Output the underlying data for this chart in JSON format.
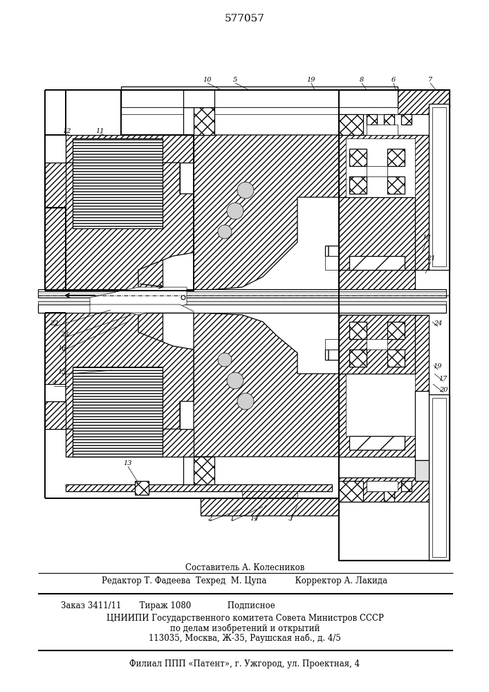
{
  "patent_number": "577057",
  "bg": "#ffffff",
  "lc": "#000000",
  "footer_lines": [
    [
      "center",
      354,
      820,
      8.5,
      "Составитель А. Колесников"
    ],
    [
      "center",
      354,
      840,
      8.5,
      "Редактор Т. Фадеева  Техред  М. Цупа           Корректор А. Лакида"
    ],
    [
      "left",
      88,
      875,
      8.5,
      "Заказ 3411/11       Тираж 1080              Подписное"
    ],
    [
      "center",
      354,
      893,
      8.5,
      "ЦНИИПИ Государственного комитета Совета Министров СССР"
    ],
    [
      "center",
      354,
      908,
      8.5,
      "по делам изобретений и открытий"
    ],
    [
      "center",
      354,
      922,
      8.5,
      "113035, Москва, Ж-35, Раушская наб., д. 4/5"
    ],
    [
      "center",
      354,
      960,
      8.5,
      "Филиал ППП «Патент», г. Ужгород, ул. Проектная, 4"
    ]
  ]
}
